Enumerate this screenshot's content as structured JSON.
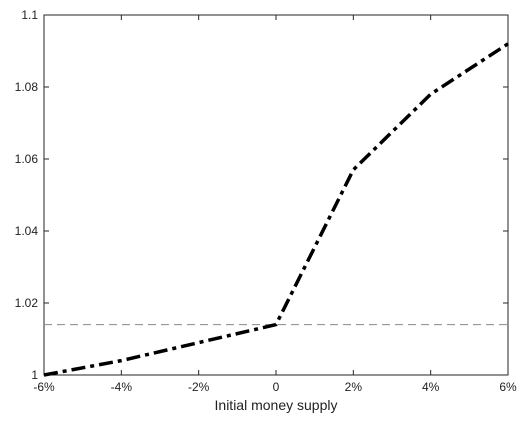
{
  "chart_data": {
    "type": "line",
    "title": "",
    "xlabel": "Initial money supply",
    "ylabel": "",
    "x": [
      -6,
      -4,
      -2,
      0,
      2,
      4,
      6
    ],
    "x_tick_labels": [
      "-6%",
      "-4%",
      "-2%",
      "0",
      "2%",
      "4%",
      "6%"
    ],
    "y_ticks": [
      1,
      1.02,
      1.04,
      1.06,
      1.08,
      1.1
    ],
    "y_tick_labels": [
      "1",
      "1.02",
      "1.04",
      "1.06",
      "1.08",
      "1.1"
    ],
    "xlim": [
      -6,
      6
    ],
    "ylim": [
      1,
      1.1
    ],
    "grid": false,
    "series": [
      {
        "values": [
          1.0,
          1.004,
          1.009,
          1.014,
          1.057,
          1.078,
          1.092
        ],
        "color": "#000000",
        "style": "dash-dot"
      }
    ],
    "reference_lines": [
      {
        "orientation": "horizontal",
        "y": 1.014,
        "color": "#888888",
        "style": "dashed"
      }
    ]
  }
}
